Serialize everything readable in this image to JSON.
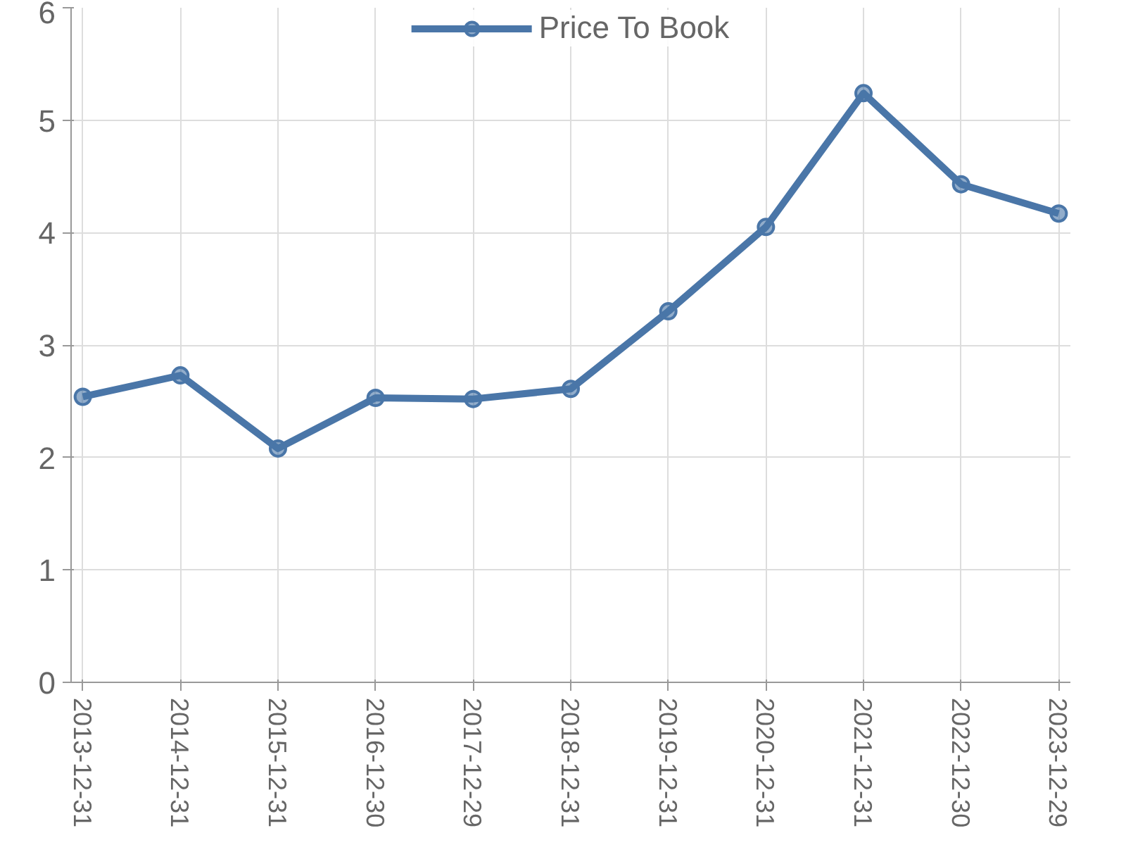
{
  "chart_data": {
    "type": "line",
    "categories": [
      "2013-12-31",
      "2014-12-31",
      "2015-12-31",
      "2016-12-30",
      "2017-12-29",
      "2018-12-31",
      "2019-12-31",
      "2020-12-31",
      "2021-12-31",
      "2022-12-30",
      "2023-12-29"
    ],
    "series": [
      {
        "name": "Price To Book",
        "color": "#4a76a8",
        "values": [
          2.54,
          2.73,
          2.08,
          2.53,
          2.52,
          2.61,
          3.3,
          4.05,
          5.24,
          4.43,
          4.17
        ]
      }
    ],
    "ylim": [
      0,
      6
    ],
    "yticks": [
      0,
      1,
      2,
      3,
      4,
      5,
      6
    ],
    "grid": true,
    "legend": "top",
    "marker": "circle",
    "line_style": "solid"
  }
}
